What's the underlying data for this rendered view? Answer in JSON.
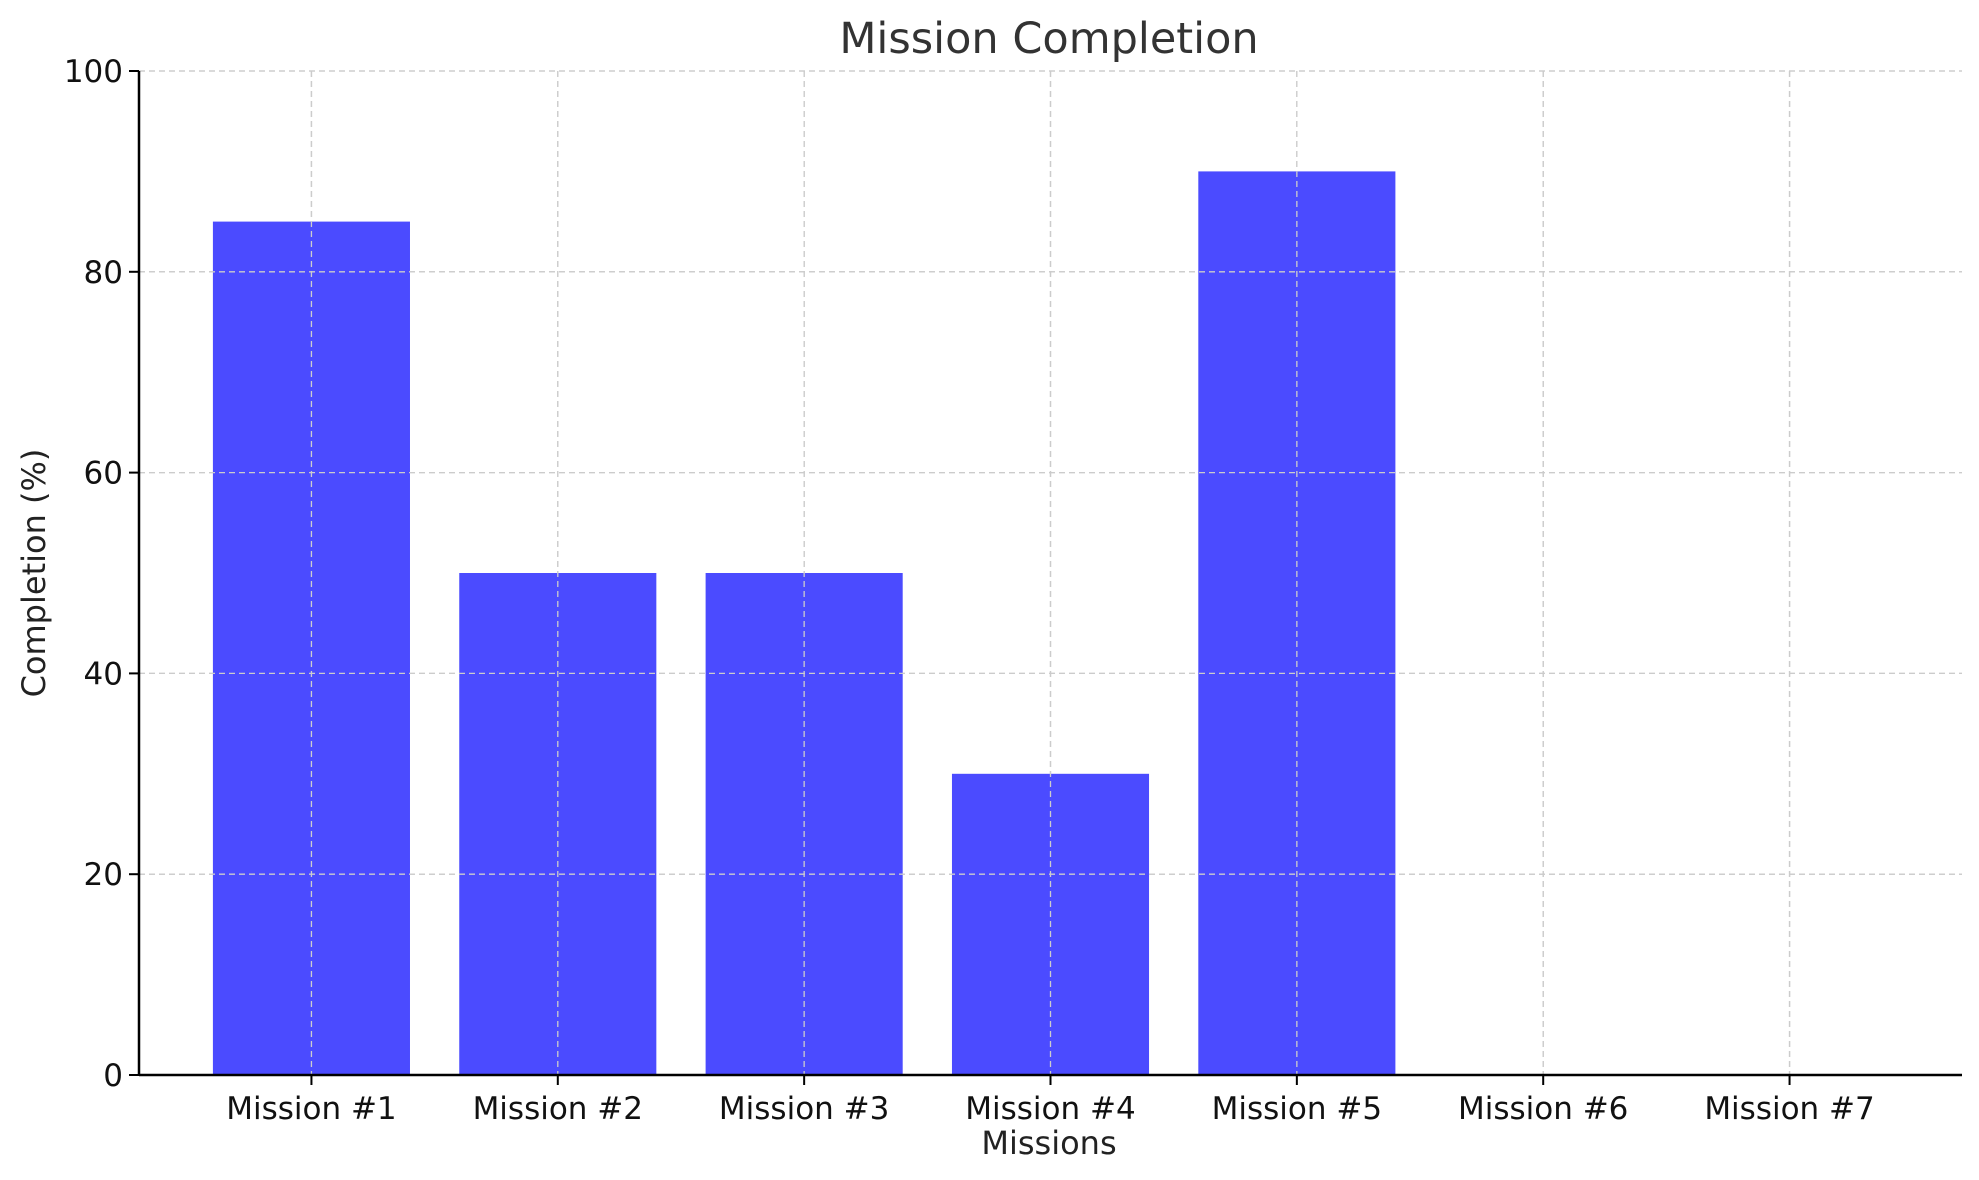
{
  "chart_data": {
    "type": "bar",
    "title": "Mission Completion",
    "xlabel": "Missions",
    "ylabel": "Completion (%)",
    "categories": [
      "Mission #1",
      "Mission #2",
      "Mission #3",
      "Mission #4",
      "Mission #5",
      "Mission #6",
      "Mission #7"
    ],
    "values": [
      85,
      50,
      50,
      30,
      90,
      0,
      0
    ],
    "ylim": [
      0,
      100
    ],
    "yticks": [
      0,
      20,
      40,
      60,
      80,
      100
    ],
    "grid": true,
    "bar_color": "#4b4bff"
  }
}
